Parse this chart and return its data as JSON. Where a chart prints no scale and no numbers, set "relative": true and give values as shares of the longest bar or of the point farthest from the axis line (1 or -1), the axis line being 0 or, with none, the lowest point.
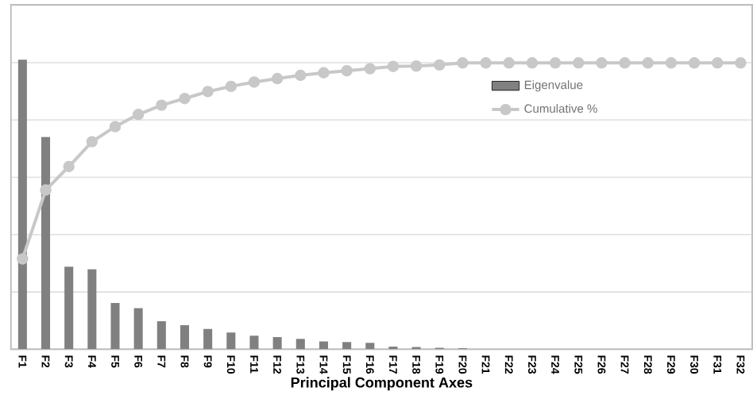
{
  "chart_data": {
    "type": "bar",
    "relative": true,
    "xlabel": "Principal Component Axes",
    "categories": [
      "F1",
      "F2",
      "F3",
      "F4",
      "F5",
      "F6",
      "F7",
      "F8",
      "F9",
      "F10",
      "F11",
      "F12",
      "F13",
      "F14",
      "F15",
      "F16",
      "F17",
      "F18",
      "F19",
      "F20",
      "F21",
      "F22",
      "F23",
      "F24",
      "F25",
      "F26",
      "F27",
      "F28",
      "F29",
      "F30",
      "F31",
      "F32"
    ],
    "series": [
      {
        "name": "Eigenvalue",
        "color": "#808080",
        "values": [
          1,
          0.733,
          0.285,
          0.276,
          0.16,
          0.142,
          0.097,
          0.083,
          0.07,
          0.058,
          0.047,
          0.042,
          0.036,
          0.027,
          0.025,
          0.022,
          0.009,
          0.008,
          0.005,
          0.004,
          0,
          0,
          0,
          0,
          0,
          0,
          0,
          0,
          0,
          0,
          0,
          0
        ]
      },
      {
        "name": "Cumulative %",
        "type": "line",
        "color": "#c8c8c8",
        "marker": "circle",
        "values": [
          0.312,
          0.55,
          0.631,
          0.717,
          0.769,
          0.811,
          0.843,
          0.866,
          0.89,
          0.908,
          0.923,
          0.935,
          0.946,
          0.955,
          0.962,
          0.969,
          0.977,
          0.978,
          0.982,
          0.989,
          0.989,
          0.989,
          0.989,
          0.989,
          0.989,
          0.989,
          0.989,
          0.989,
          0.989,
          0.989,
          0.989,
          0.989
        ]
      }
    ],
    "grid": "y",
    "legend": "right"
  }
}
